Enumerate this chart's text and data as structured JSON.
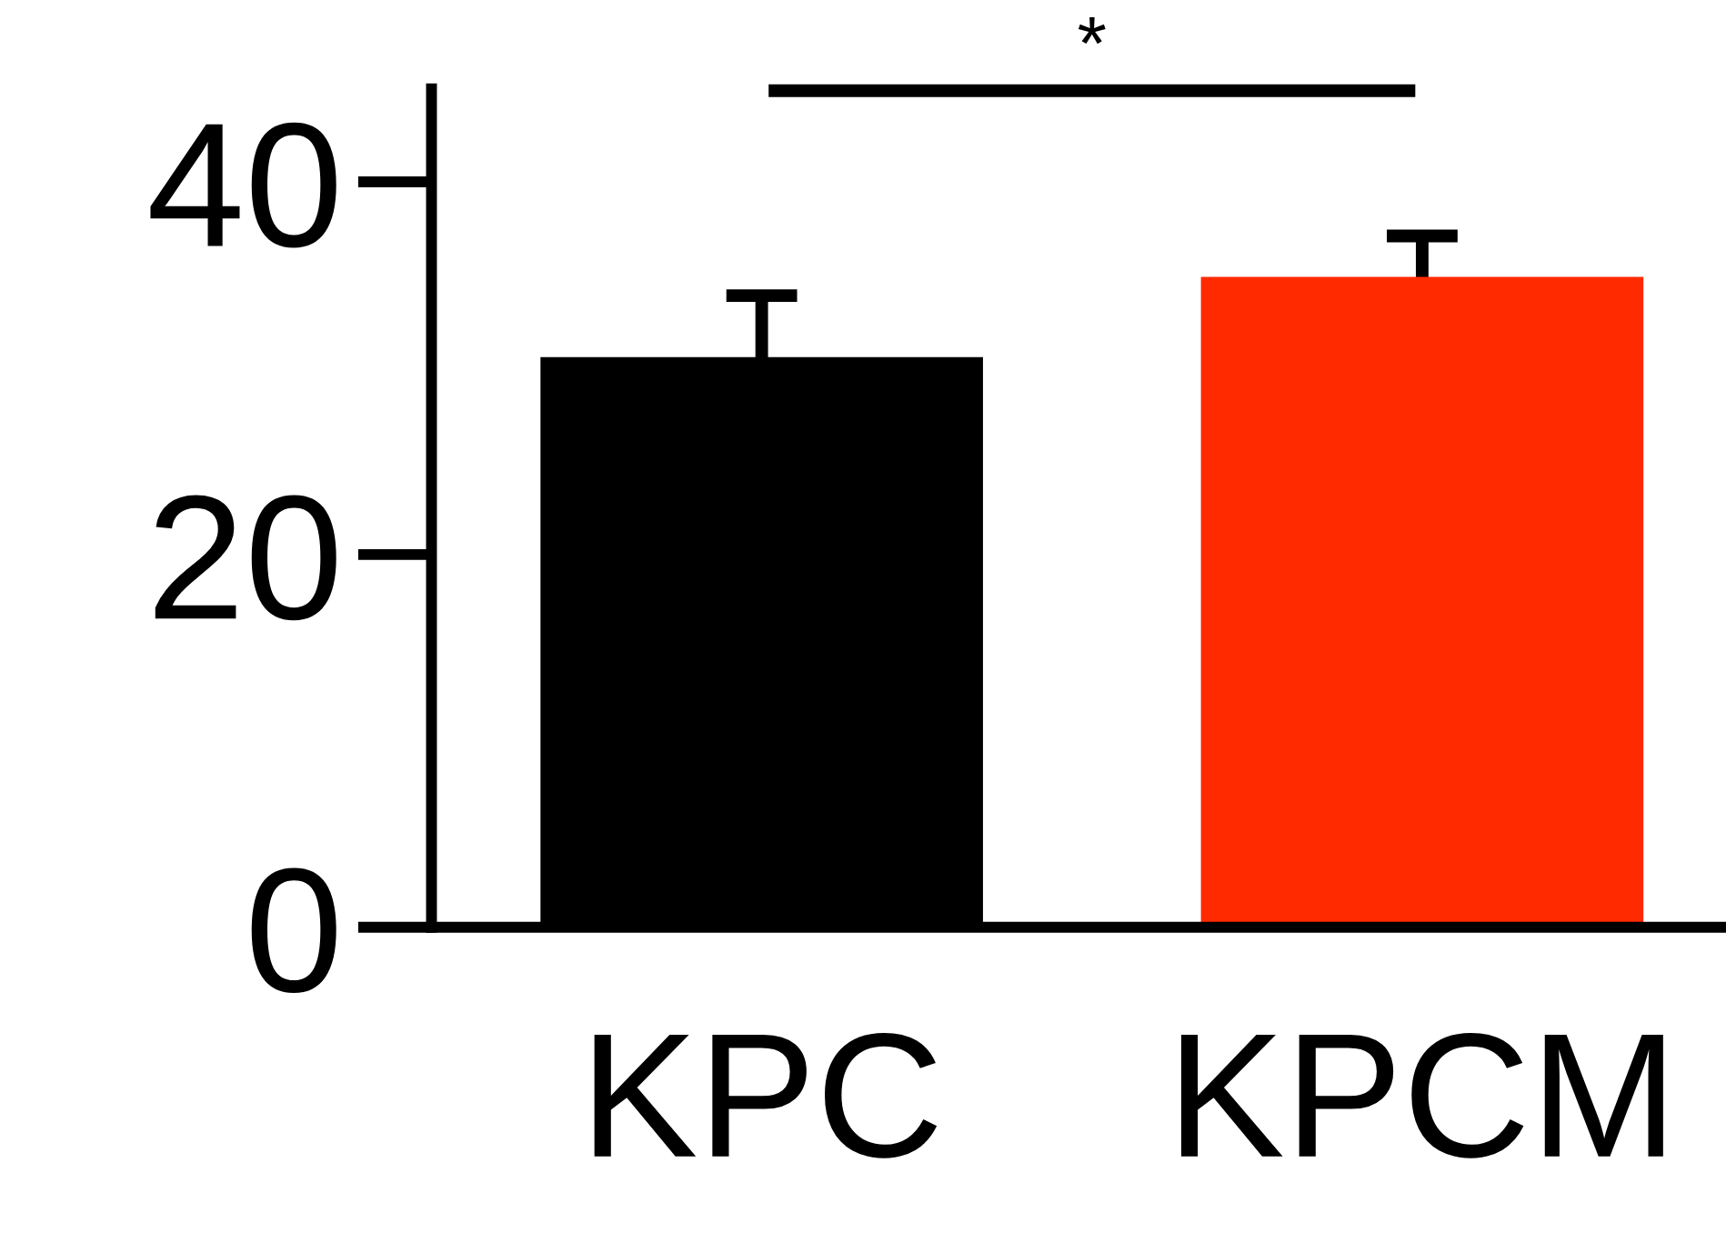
{
  "chart_data": {
    "type": "bar",
    "categories": [
      "KPC",
      "KPCM"
    ],
    "values": [
      30.6,
      34.9
    ],
    "colors": [
      "#000000",
      "#ff2a00"
    ],
    "errors": [
      3.3,
      2.2
    ],
    "ylim": [
      0,
      45
    ],
    "yticks": [
      0,
      20,
      40
    ],
    "annotations": [
      "*"
    ],
    "grid": false,
    "legend": false
  }
}
